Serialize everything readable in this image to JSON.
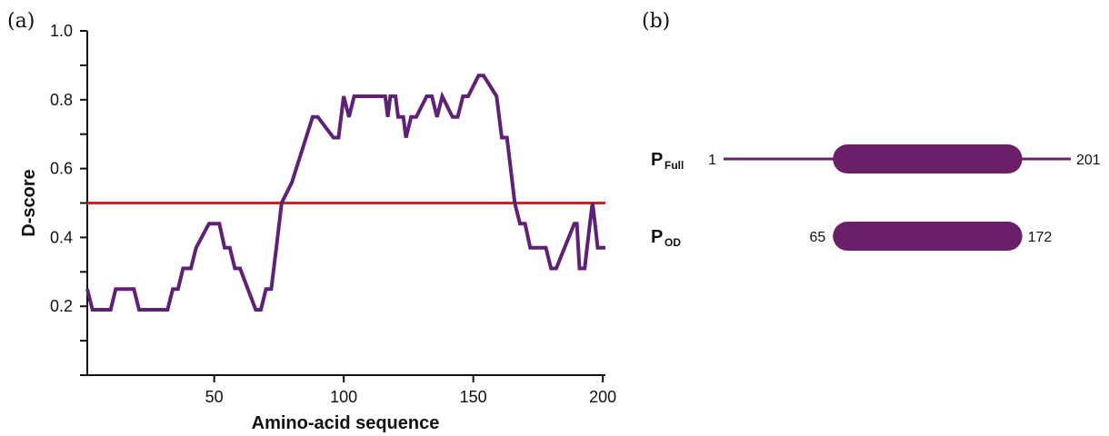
{
  "panel_a": {
    "label": "(a)",
    "chart_data": {
      "type": "line",
      "title": "",
      "xlabel": "Amino-acid sequence",
      "ylabel": "D-score",
      "xlim": [
        1,
        201
      ],
      "ylim": [
        0.0,
        1.0
      ],
      "xticks": [
        50,
        100,
        150,
        200
      ],
      "yticks": [
        0.2,
        0.4,
        0.6,
        0.8,
        1.0
      ],
      "ytick_labels": [
        "0.2",
        "0.4",
        "0.6",
        "0.8",
        "1.0"
      ],
      "xtick_labels": [
        "50",
        "100",
        "150",
        "200"
      ],
      "threshold": {
        "y": 0.5,
        "color": "#d42020"
      },
      "series": [
        {
          "color": "#5e2177",
          "x": [
            1,
            3,
            10,
            12,
            19,
            21,
            32,
            34,
            36,
            38,
            41,
            43,
            48,
            50,
            52,
            54,
            56,
            58,
            60,
            66,
            68,
            70,
            72,
            74,
            76,
            80,
            88,
            90,
            96,
            98,
            100,
            102,
            104,
            106,
            116,
            117,
            118,
            119,
            120,
            121,
            123,
            124,
            126,
            128,
            132,
            134,
            136,
            138,
            142,
            144,
            146,
            148,
            152,
            154,
            159,
            161,
            163,
            166,
            168,
            170,
            172,
            174,
            176,
            178,
            180,
            182,
            189,
            190,
            191,
            193,
            195,
            196,
            197,
            198,
            199,
            201
          ],
          "y": [
            0.25,
            0.19,
            0.19,
            0.25,
            0.25,
            0.19,
            0.19,
            0.25,
            0.25,
            0.31,
            0.31,
            0.37,
            0.44,
            0.44,
            0.44,
            0.37,
            0.37,
            0.31,
            0.31,
            0.19,
            0.19,
            0.25,
            0.25,
            0.37,
            0.5,
            0.56,
            0.75,
            0.75,
            0.69,
            0.69,
            0.81,
            0.75,
            0.81,
            0.81,
            0.81,
            0.75,
            0.81,
            0.81,
            0.81,
            0.75,
            0.75,
            0.69,
            0.75,
            0.75,
            0.81,
            0.81,
            0.75,
            0.81,
            0.75,
            0.75,
            0.81,
            0.81,
            0.87,
            0.87,
            0.81,
            0.69,
            0.69,
            0.5,
            0.44,
            0.44,
            0.37,
            0.37,
            0.37,
            0.37,
            0.31,
            0.31,
            0.44,
            0.44,
            0.31,
            0.31,
            0.44,
            0.5,
            0.44,
            0.37,
            0.37,
            0.37
          ]
        }
      ]
    }
  },
  "panel_b": {
    "label": "(b)",
    "rows": [
      {
        "name_main": "P",
        "name_sub": "Full",
        "start_label": "1",
        "end_label": "201",
        "start": 1,
        "end": 201,
        "domain_start": 65,
        "domain_end": 172,
        "has_line": true
      },
      {
        "name_main": "P",
        "name_sub": "OD",
        "start_label": "65",
        "end_label": "172",
        "start": 65,
        "end": 172,
        "domain_start": 65,
        "domain_end": 172,
        "has_line": false
      }
    ],
    "color": "#6b1f68"
  }
}
